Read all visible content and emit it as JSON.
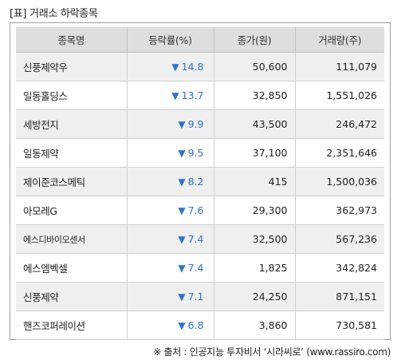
{
  "title": "[표] 거래소 하락종목",
  "table": {
    "headers": [
      "종목명",
      "등락률(%)",
      "종가(원)",
      "거래량(주)"
    ],
    "arrow": "▼",
    "rows": [
      {
        "name": "신풍제약우",
        "rate": "14.8",
        "price": "50,600",
        "volume": "111,079"
      },
      {
        "name": "일동홀딩스",
        "rate": "13.7",
        "price": "32,850",
        "volume": "1,551,026"
      },
      {
        "name": "세방전지",
        "rate": "9.9",
        "price": "43,500",
        "volume": "246,472"
      },
      {
        "name": "일동제약",
        "rate": "9.5",
        "price": "37,100",
        "volume": "2,351,646"
      },
      {
        "name": "제이준코스메틱",
        "rate": "8.2",
        "price": "415",
        "volume": "1,500,036"
      },
      {
        "name": "아모레G",
        "rate": "7.6",
        "price": "29,300",
        "volume": "362,973"
      },
      {
        "name": "에스디바이오센서",
        "rate": "7.4",
        "price": "32,500",
        "volume": "567,236"
      },
      {
        "name": "에스엠벡셀",
        "rate": "7.4",
        "price": "1,825",
        "volume": "342,824"
      },
      {
        "name": "신풍제약",
        "rate": "7.1",
        "price": "24,250",
        "volume": "871,151"
      },
      {
        "name": "핸즈코퍼레이션",
        "rate": "6.8",
        "price": "3,860",
        "volume": "730,581"
      }
    ]
  },
  "source": "※ 출처 : 인공지능 투자비서 ‘시라씨로’ (www.rassiro.com)",
  "colors": {
    "down": "#2e74c9",
    "header_bg": "#dedede",
    "alt_row_bg": "#efefef"
  }
}
